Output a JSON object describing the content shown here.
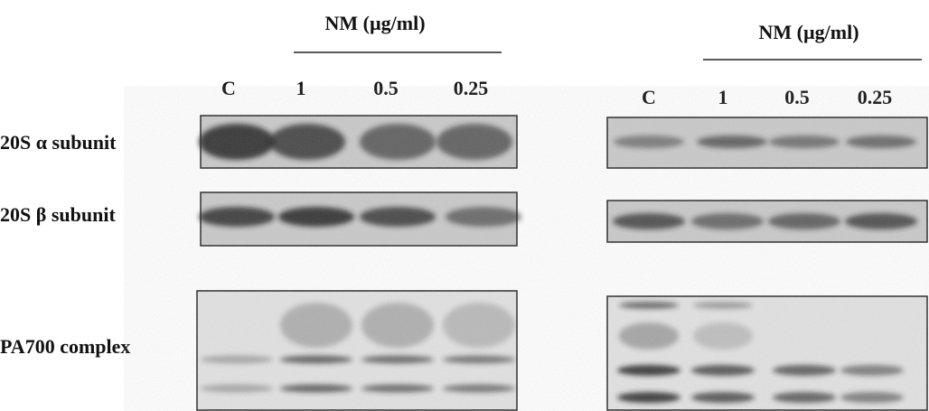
{
  "row_labels": [
    "20S α subunit",
    "20S β subunit",
    "PA700 complex"
  ],
  "panels": [
    {
      "header": "NM  (µg/ml)",
      "lanes": [
        "C",
        "1",
        "0.5",
        "0.25"
      ]
    },
    {
      "header": "NM  (µg/ml)",
      "lanes": [
        "C",
        "1",
        "0.5",
        "0.25"
      ]
    }
  ]
}
